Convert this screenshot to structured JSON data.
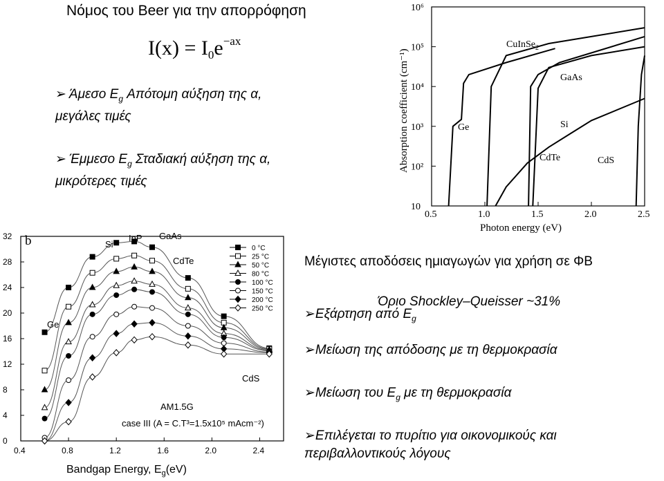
{
  "title": "Νόμος του Beer για την απορρόφηση",
  "formula": {
    "lhs": "I(x) = I",
    "sub": "0",
    "base": "e",
    "exp": "−ax"
  },
  "bullets_left": [
    {
      "line1_pre": "Άμεσο E",
      "sub": "g",
      "line1_post": " Απότομη αύξηση της α,",
      "line2": "μεγάλες τιμές"
    },
    {
      "line1_pre": "Έμμεσο E",
      "sub": "g",
      "line1_post": " Σταδιακή αύξηση της α,",
      "line2": "μικρότερες τιμές"
    }
  ],
  "right": {
    "heading": "Μέγιστες αποδόσεις ημιαγωγών για χρήση σε ΦΒ",
    "limit": "Όριο Shockley–Queisser  ~31%",
    "b1_pre": "Εξάρτηση από E",
    "b1_sub": "g",
    "b2": "Μείωση της απόδοσης με τη θερμοκρασία",
    "b3_pre": "Μείωση του E",
    "b3_sub": "g",
    "b3_post": " με τη θερμοκρασία",
    "b4_line1": "Επιλέγεται το πυρίτιο για οικονομικούς και",
    "b4_line2": "περιβαλλοντικούς λόγους"
  },
  "chart_data": [
    {
      "type": "line",
      "ylabel": "Absorption coefficient (cm⁻¹)",
      "xlabel": "Photon energy (eV)",
      "log_y": true,
      "xlim": [
        0.5,
        2.5
      ],
      "ylim": [
        10,
        1000000
      ],
      "x_ticks": [
        "0.5",
        "1.0",
        "1.5",
        "2.0",
        "2.5"
      ],
      "y_ticks": [
        "10",
        "10²",
        "10³",
        "10⁴",
        "10⁵",
        "10⁶"
      ],
      "series": [
        {
          "name": "Ge",
          "x": [
            0.66,
            0.7,
            0.78,
            0.8,
            0.85,
            1.2,
            1.66
          ],
          "y": [
            10,
            1000,
            1500,
            12000,
            20000,
            40000,
            90000
          ]
        },
        {
          "name": "CuInSe2",
          "x": [
            1.02,
            1.06,
            1.2,
            1.6,
            2.0,
            2.5
          ],
          "y": [
            10,
            10000,
            60000,
            120000,
            180000,
            300000
          ]
        },
        {
          "name": "GaAs",
          "x": [
            1.41,
            1.43,
            1.5,
            1.7,
            2.0,
            2.5
          ],
          "y": [
            10,
            10000,
            20000,
            40000,
            70000,
            180000
          ]
        },
        {
          "name": "Si",
          "x": [
            1.1,
            1.2,
            1.4,
            1.6,
            1.8,
            2.0,
            2.5
          ],
          "y": [
            10,
            30,
            120,
            300,
            650,
            1400,
            5000
          ]
        },
        {
          "name": "CdTe",
          "x": [
            1.45,
            1.5,
            1.6,
            2.0,
            2.5
          ],
          "y": [
            10,
            9000,
            30000,
            60000,
            100000
          ]
        },
        {
          "name": "CdS",
          "x": [
            2.42,
            2.44,
            2.47,
            2.5
          ],
          "y": [
            10,
            1000,
            20000,
            60000
          ]
        }
      ]
    },
    {
      "type": "line",
      "panel_label": "b",
      "xlabel": "Bandgap Energy, E",
      "xlabel_sub": "g",
      "xlabel_unit": "(eV)",
      "xlim": [
        0.4,
        2.6
      ],
      "ylim": [
        0,
        32
      ],
      "x_ticks": [
        "0.4",
        "0.8",
        "1.2",
        "1.6",
        "2.0",
        "2.4"
      ],
      "y_ticks": [
        "0",
        "4",
        "8",
        "12",
        "16",
        "20",
        "24",
        "28",
        "32"
      ],
      "annotations": [
        "Si",
        "InP",
        "GaAs",
        "CdTe",
        "Ge",
        "CdS"
      ],
      "note1": "AM1.5G",
      "note2": "case III (A = C.T³=1.5x10⁵ mAcm⁻²)",
      "legend": [
        "0 °C",
        "25 °C",
        "50 °C",
        "80 °C",
        "100 °C",
        "150 °C",
        "200 °C",
        "250 °C"
      ],
      "x": [
        0.6,
        0.8,
        1.0,
        1.2,
        1.35,
        1.5,
        1.8,
        2.1,
        2.48
      ],
      "series": [
        {
          "name": "0 °C",
          "values": [
            17.0,
            24.0,
            28.8,
            31.0,
            31.2,
            30.3,
            25.5,
            19.5,
            14.5
          ]
        },
        {
          "name": "25 °C",
          "values": [
            11.0,
            21.0,
            26.3,
            28.5,
            29.0,
            28.2,
            23.8,
            18.5,
            14.4
          ]
        },
        {
          "name": "50 °C",
          "values": [
            8.0,
            18.5,
            24.0,
            26.5,
            27.2,
            26.5,
            22.4,
            17.7,
            14.3
          ]
        },
        {
          "name": "80 °C",
          "values": [
            5.2,
            15.5,
            21.3,
            24.3,
            25.0,
            24.5,
            20.8,
            16.8,
            14.2
          ]
        },
        {
          "name": "100 °C",
          "values": [
            3.5,
            13.3,
            19.8,
            22.8,
            23.7,
            23.3,
            19.8,
            16.2,
            14.1
          ]
        },
        {
          "name": "150 °C",
          "values": [
            0.5,
            9.5,
            16.3,
            19.8,
            21.0,
            20.8,
            18.0,
            15.3,
            13.9
          ]
        },
        {
          "name": "200 °C",
          "values": [
            0.0,
            6.0,
            13.0,
            16.8,
            18.3,
            18.5,
            16.4,
            14.4,
            13.8
          ]
        },
        {
          "name": "250 °C",
          "values": [
            0.0,
            3.0,
            10.0,
            13.8,
            15.8,
            16.3,
            15.0,
            13.6,
            13.6
          ]
        }
      ]
    }
  ]
}
